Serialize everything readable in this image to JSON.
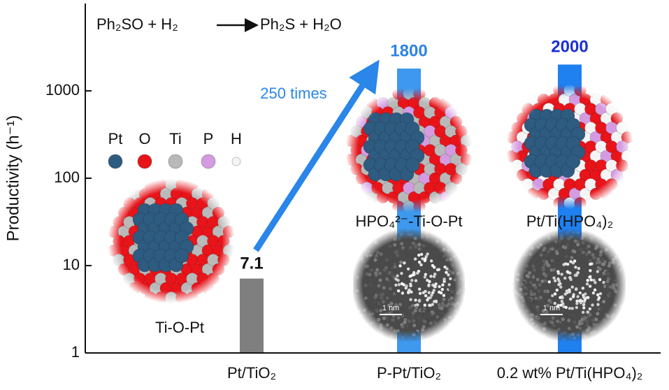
{
  "chart_data": {
    "type": "bar",
    "categories": [
      "Pt/TiO₂",
      "P-Pt/TiO₂",
      "0.2 wt% Pt/Ti(HPO₄)₂"
    ],
    "values": [
      7.1,
      1800,
      2000
    ],
    "colors": [
      "#7f7f7f",
      "#3d98ee",
      "#1f80f0"
    ],
    "value_label_colors": [
      "#111111",
      "#2d83e6",
      "#1a30d8"
    ],
    "ylim": [
      1,
      10000
    ],
    "yticks": [
      1,
      10,
      100,
      1000
    ],
    "log_scale": true,
    "y_label": "Productivity (h⁻¹)",
    "reaction": [
      "Ph₂SO + H₂",
      "Ph₂S + H₂O"
    ],
    "arrow_label": "250 times",
    "atom_legend": [
      {
        "label": "Pt",
        "color": "#2e5b80"
      },
      {
        "label": "O",
        "color": "#e8141a"
      },
      {
        "label": "Ti",
        "color": "#b9b9b9"
      },
      {
        "label": "P",
        "color": "#d59be0"
      },
      {
        "label": "H",
        "color": "#f4f4f4"
      }
    ],
    "structures": [
      "Ti-O-Pt",
      "HPO₄²⁻-Ti-O-Pt",
      "Pt/Ti(HPO₄)₂"
    ],
    "scale_bars": [
      "1 nm",
      "1 nm"
    ]
  }
}
